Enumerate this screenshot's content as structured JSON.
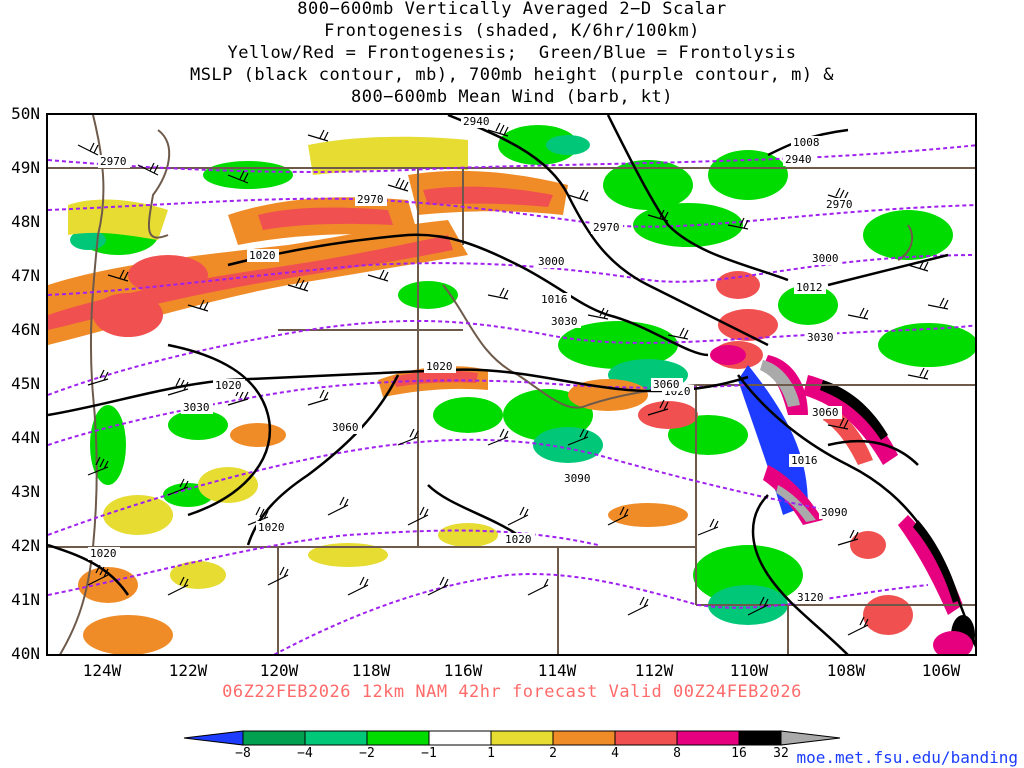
{
  "title_lines": [
    "800−600mb Vertically Averaged 2−D Scalar",
    "Frontogenesis (shaded, K/6hr/100km)",
    "Yellow/Red = Frontogenesis;  Green/Blue = Frontolysis",
    "MSLP (black contour, mb), 700mb height (purple contour, m) &",
    "800−600mb Mean Wind (barb, kt)"
  ],
  "lat_labels": [
    "50N",
    "49N",
    "48N",
    "47N",
    "46N",
    "45N",
    "44N",
    "43N",
    "42N",
    "41N",
    "40N"
  ],
  "lon_labels": [
    "124W",
    "122W",
    "120W",
    "118W",
    "116W",
    "114W",
    "112W",
    "110W",
    "108W",
    "106W"
  ],
  "mslp_labels": [
    "1008",
    "1012",
    "1016",
    "1016",
    "1020",
    "1020",
    "1020",
    "1020",
    "1020",
    "1020",
    "1020"
  ],
  "height_labels": [
    "2940",
    "2940",
    "2970",
    "2970",
    "2970",
    "2970",
    "3000",
    "3000",
    "3030",
    "3030",
    "3030",
    "3060",
    "3060",
    "3060",
    "3090",
    "3090",
    "3120"
  ],
  "valid_line": "06Z22FEB2026 12km NAM 42hr forecast Valid 00Z24FEB2026",
  "colorbar": {
    "ticks": [
      "−8",
      "−4",
      "−2",
      "−1",
      "1",
      "2",
      "4",
      "8",
      "16",
      "32"
    ],
    "colors": [
      "#1e3cff",
      "#00a050",
      "#00c878",
      "#00dc00",
      "#ffffff",
      "#e6dc32",
      "#f08c28",
      "#f05050",
      "#e6007f",
      "#000000",
      "#aaaaaa"
    ]
  },
  "colors": {
    "mslp_contour": "#000000",
    "height_contour": "#a020f0",
    "borders": "#6e5a4b"
  },
  "site_url": "moe.met.fsu.edu/banding"
}
